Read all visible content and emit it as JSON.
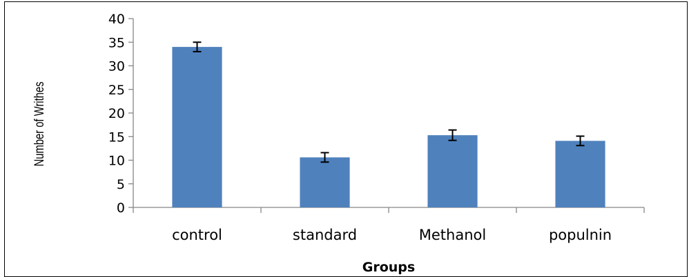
{
  "chart_data": {
    "type": "bar",
    "categories": [
      "control",
      "standard",
      "Methanol",
      "populnin"
    ],
    "values": [
      34,
      10.6,
      15.3,
      14.1
    ],
    "errors": [
      1.0,
      1.0,
      1.1,
      1.0
    ],
    "xlabel": "Groups",
    "ylabel": "Number of Writhes",
    "ylim": [
      0,
      40
    ],
    "yticks": [
      0,
      5,
      10,
      15,
      20,
      25,
      30,
      35,
      40
    ],
    "grid": false,
    "legend": "none",
    "bar_color": "#4F81BD",
    "error_color": "#000000"
  }
}
